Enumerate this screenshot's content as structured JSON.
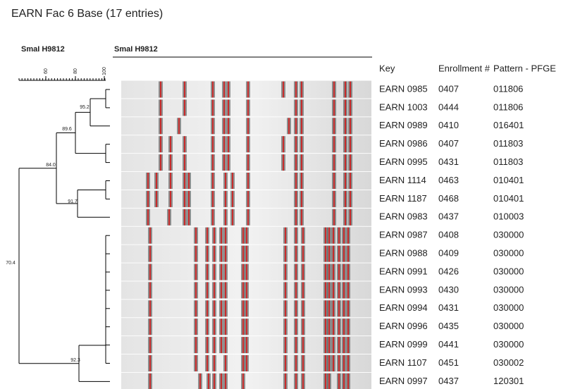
{
  "header": {
    "title": "EARN Fac 6 Base (17 entries)",
    "tree_label": "SmaI H9812",
    "gel_label": "SmaI H9812"
  },
  "scale": {
    "ticks": [
      "60",
      "80",
      "100"
    ]
  },
  "dendrogram": {
    "nodes": [
      "95.2",
      "89.6",
      "84.0",
      "91.7",
      "70.4",
      "92.3"
    ]
  },
  "table": {
    "columns": [
      "Key",
      "Enrollment #",
      "Pattern - PFGE"
    ],
    "rows": [
      [
        "EARN 0985",
        "0407",
        "011806"
      ],
      [
        "EARN 1003",
        "0444",
        "011806"
      ],
      [
        "EARN 0989",
        "0410",
        "016401"
      ],
      [
        "EARN 0986",
        "0407",
        "011803"
      ],
      [
        "EARN 0995",
        "0431",
        "011803"
      ],
      [
        "EARN 1114",
        "0463",
        "010401"
      ],
      [
        "EARN 1187",
        "0468",
        "010401"
      ],
      [
        "EARN 0983",
        "0437",
        "010003"
      ],
      [
        "EARN 0987",
        "0408",
        "030000"
      ],
      [
        "EARN 0988",
        "0409",
        "030000"
      ],
      [
        "EARN 0991",
        "0426",
        "030000"
      ],
      [
        "EARN 0993",
        "0430",
        "030000"
      ],
      [
        "EARN 0994",
        "0431",
        "030000"
      ],
      [
        "EARN 0996",
        "0435",
        "030000"
      ],
      [
        "EARN 0999",
        "0441",
        "030000"
      ],
      [
        "EARN 1107",
        "0451",
        "030002"
      ],
      [
        "EARN 0997",
        "0437",
        "120301"
      ]
    ]
  }
}
